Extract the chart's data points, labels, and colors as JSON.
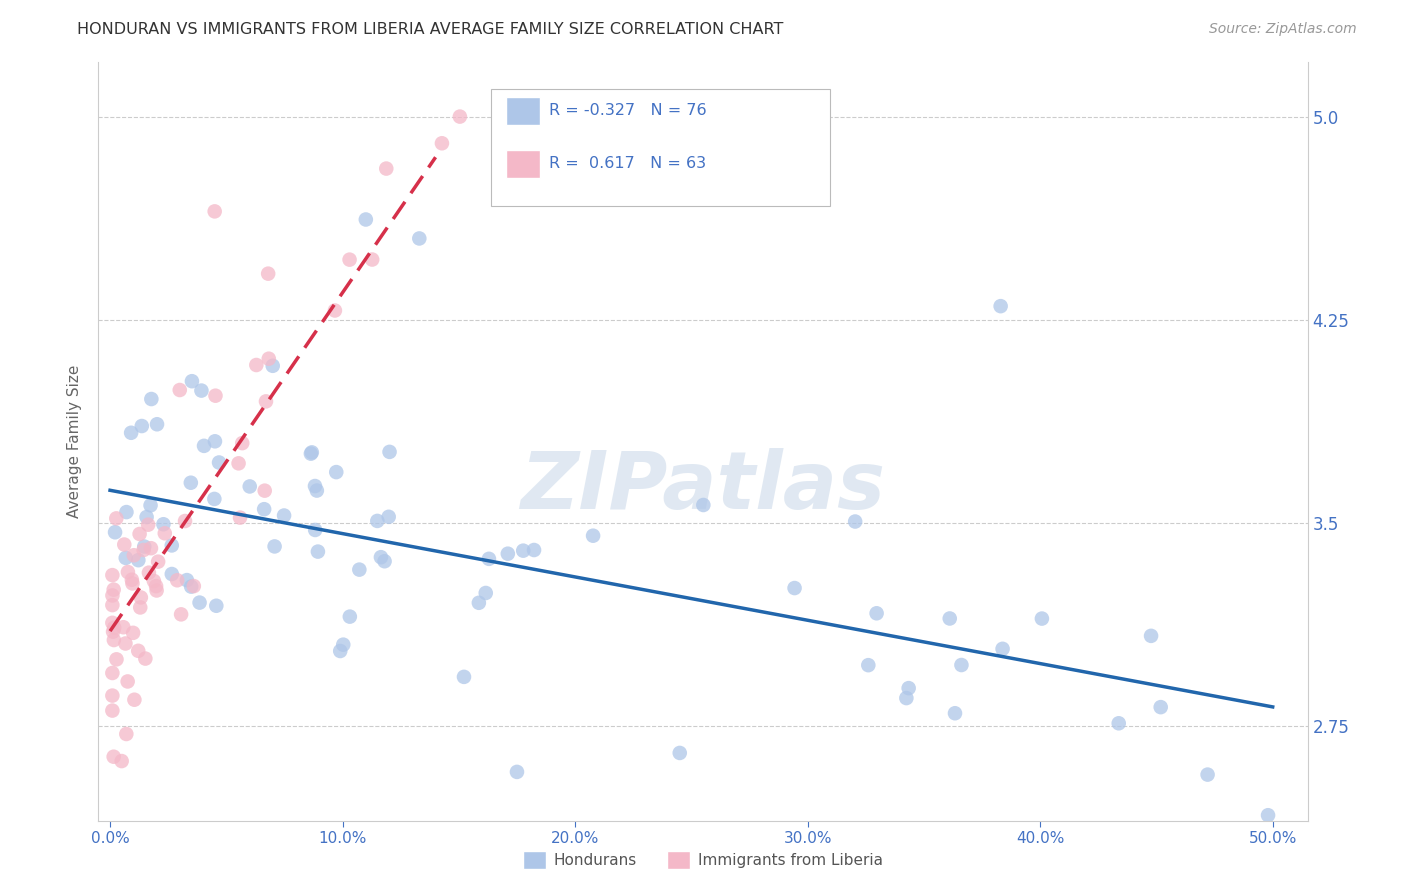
{
  "title": "HONDURAN VS IMMIGRANTS FROM LIBERIA AVERAGE FAMILY SIZE CORRELATION CHART",
  "source": "Source: ZipAtlas.com",
  "ylabel": "Average Family Size",
  "xlabel_ticks": [
    "0.0%",
    "10.0%",
    "20.0%",
    "30.0%",
    "40.0%",
    "50.0%"
  ],
  "xlabel_vals": [
    0.0,
    0.1,
    0.2,
    0.3,
    0.4,
    0.5
  ],
  "ylabel_ticks": [
    2.75,
    3.5,
    4.25,
    5.0
  ],
  "ylim": [
    2.4,
    5.2
  ],
  "xlim": [
    -0.005,
    0.515
  ],
  "legend1_R": "-0.327",
  "legend1_N": "76",
  "legend2_R": "0.617",
  "legend2_N": "63",
  "blue_color": "#aec6e8",
  "pink_color": "#f4b8c8",
  "trend_blue": "#2166ac",
  "trend_pink": "#d6304a",
  "axis_color": "#4472c4",
  "watermark": "ZIPatlas",
  "blue_trend_x0": 0.0,
  "blue_trend_y0": 3.62,
  "blue_trend_x1": 0.5,
  "blue_trend_y1": 2.82,
  "pink_trend_x0": 0.0,
  "pink_trend_y0": 3.1,
  "pink_trend_x1": 0.14,
  "pink_trend_y1": 4.85
}
